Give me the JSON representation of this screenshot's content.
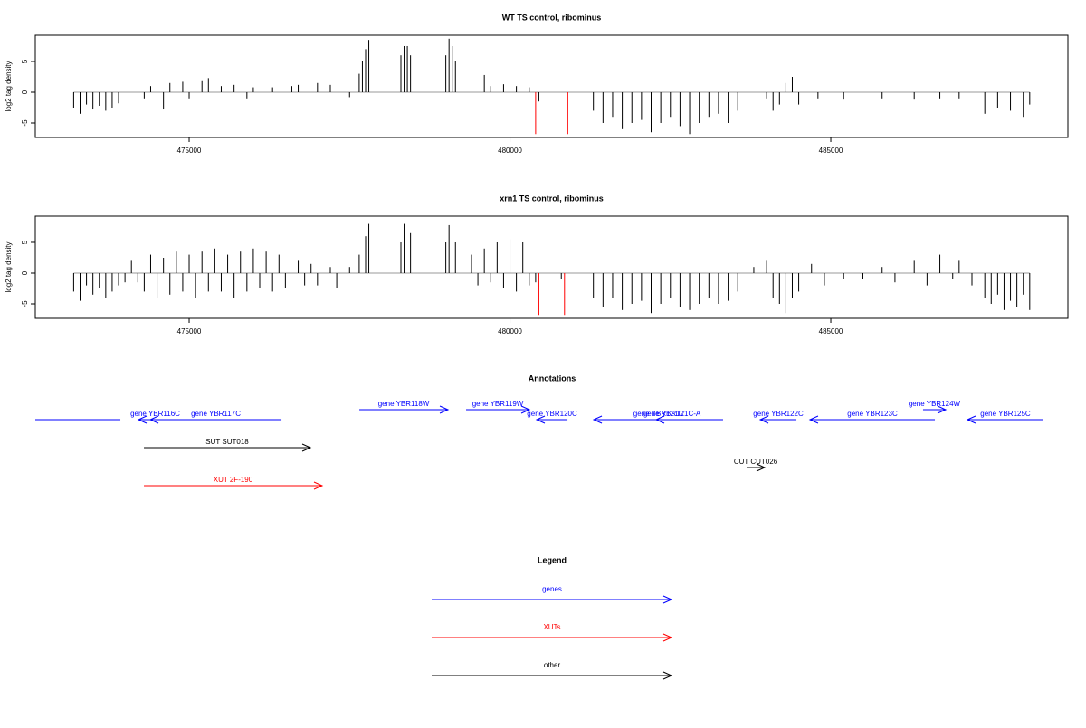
{
  "chart_data": [
    {
      "type": "bar",
      "title": "WT TS control, ribominus",
      "y_label": "log2 tag density",
      "xlim": [
        472602,
        488695
      ],
      "ylim": [
        -7.35,
        9.26
      ],
      "xticks": [
        475000,
        480000,
        485000
      ],
      "yticks": [
        -5,
        0,
        5
      ],
      "series": [
        {
          "color": "#000000",
          "x": [
            473200,
            473300,
            473400,
            473500,
            473600,
            473700,
            473800,
            473900,
            474300,
            474400,
            474600,
            474700,
            474900,
            475000,
            475200,
            475300,
            475500,
            475700,
            475900,
            476000,
            476300,
            476600,
            476700,
            477000,
            477200,
            477500,
            477650,
            477700,
            477750,
            477800,
            478300,
            478350,
            478400,
            478450,
            479000,
            479050,
            479100,
            479150,
            479600,
            479700,
            479900,
            480100,
            480300,
            480450,
            481300,
            481450,
            481600,
            481750,
            481900,
            482050,
            482200,
            482350,
            482500,
            482650,
            482800,
            482950,
            483100,
            483250,
            483400,
            483550,
            484000,
            484100,
            484200,
            484300,
            484400,
            484500,
            484800,
            485200,
            485800,
            486300,
            486700,
            487000,
            487400,
            487600,
            487800,
            488000,
            488100
          ],
          "values": [
            -2.5,
            -3.5,
            -2,
            -2.8,
            -2.2,
            -3,
            -2.5,
            -1.8,
            -1,
            1,
            -2.8,
            1.5,
            1.7,
            -1,
            1.8,
            2.3,
            1,
            1.2,
            -1,
            0.8,
            0.8,
            1,
            1.2,
            1.5,
            1.2,
            -0.8,
            3,
            5,
            7,
            8.5,
            6,
            7.5,
            7.5,
            6,
            6,
            8.7,
            7.5,
            5,
            2.8,
            1,
            1.3,
            1,
            0.8,
            -1.5,
            -3,
            -5,
            -4,
            -6,
            -5,
            -4.5,
            -6.5,
            -5,
            -4,
            -5.5,
            -6.8,
            -5,
            -4,
            -3.5,
            -5,
            -3,
            -1,
            -3,
            -2,
            1.5,
            2.5,
            -2,
            -1,
            -1.2,
            -1,
            -1.2,
            -1,
            -1,
            -3.5,
            -2.5,
            -3,
            -4,
            -2
          ]
        },
        {
          "color": "#ff0000",
          "x": [
            480400,
            480900
          ],
          "values": [
            -6.8,
            -6.8
          ]
        }
      ]
    },
    {
      "type": "bar",
      "title": "xrn1 TS control, ribominus",
      "y_label": "log2 tag density",
      "xlim": [
        472602,
        488695
      ],
      "ylim": [
        -7.35,
        9.26
      ],
      "xticks": [
        475000,
        480000,
        485000
      ],
      "yticks": [
        -5,
        0,
        5
      ],
      "series": [
        {
          "color": "#000000",
          "x": [
            473200,
            473300,
            473400,
            473500,
            473600,
            473700,
            473800,
            473900,
            474000,
            474100,
            474200,
            474300,
            474400,
            474500,
            474600,
            474700,
            474800,
            474900,
            475000,
            475100,
            475200,
            475300,
            475400,
            475500,
            475600,
            475700,
            475800,
            475900,
            476000,
            476100,
            476200,
            476300,
            476400,
            476500,
            476700,
            476800,
            476900,
            477000,
            477200,
            477300,
            477500,
            477650,
            477750,
            477800,
            478300,
            478350,
            478450,
            479000,
            479050,
            479150,
            479400,
            479500,
            479600,
            479700,
            479800,
            479900,
            480000,
            480100,
            480200,
            480300,
            480400,
            480800,
            481300,
            481450,
            481600,
            481750,
            481900,
            482050,
            482200,
            482350,
            482500,
            482650,
            482800,
            482950,
            483100,
            483250,
            483400,
            483550,
            483800,
            484000,
            484100,
            484200,
            484300,
            484400,
            484500,
            484700,
            484900,
            485200,
            485500,
            485800,
            486000,
            486300,
            486500,
            486700,
            486900,
            487000,
            487200,
            487400,
            487500,
            487600,
            487700,
            487800,
            487900,
            488000,
            488100
          ],
          "values": [
            -3,
            -4.5,
            -2,
            -3.5,
            -2.5,
            -4,
            -3,
            -2,
            -1.5,
            2,
            -1.5,
            -3,
            3,
            -4,
            2.5,
            -3.5,
            3.5,
            -3,
            3,
            -4,
            3.5,
            -3,
            4,
            -3,
            3,
            -4,
            3.5,
            -3,
            4,
            -2.5,
            3.5,
            -3,
            3,
            -2.5,
            2,
            -2,
            1.5,
            -2,
            1,
            -2.5,
            1,
            3,
            6,
            8,
            5,
            8,
            6.5,
            5,
            7.8,
            5,
            3,
            -2,
            4,
            -1.5,
            5,
            -2.5,
            5.5,
            -3,
            5,
            -2,
            -1.5,
            -1,
            -4,
            -5.5,
            -4,
            -6,
            -5,
            -4.5,
            -6.5,
            -5,
            -4,
            -5.5,
            -6,
            -5,
            -4,
            -5,
            -4.5,
            -3,
            1,
            2,
            -4,
            -5,
            -6.5,
            -4,
            -3,
            1.5,
            -2,
            -1,
            -1,
            1,
            -1.5,
            2,
            -2,
            3,
            -1,
            2,
            -2,
            -4,
            -5,
            -3.5,
            -6,
            -4.5,
            -5.5,
            -3.5,
            -6
          ]
        },
        {
          "color": "#ff0000",
          "x": [
            480450,
            480850
          ],
          "values": [
            -6.8,
            -6.8
          ]
        }
      ]
    }
  ],
  "annotations": {
    "title": "Annotations",
    "features": [
      {
        "start": 472602,
        "end": 473928,
        "strand": "-",
        "color": "#0000ff"
      },
      {
        "label": "gene YBR116C",
        "start": 474210,
        "end": 474732,
        "strand": "-",
        "color": "#0000ff"
      },
      {
        "label": "gene YBR117C",
        "start": 474394,
        "end": 476439,
        "strand": "-",
        "color": "#0000ff"
      },
      {
        "label": "gene YBR118W",
        "start": 477652,
        "end": 479034,
        "strand": "+",
        "color": "#0000ff"
      },
      {
        "label": "gene YBR119W",
        "start": 479316,
        "end": 480303,
        "strand": "+",
        "color": "#0000ff"
      },
      {
        "label": "gene YBR120C",
        "start": 480416,
        "end": 480896,
        "strand": "-",
        "color": "#0000ff"
      },
      {
        "label": "gene YBR121C",
        "start": 481305,
        "end": 483321,
        "strand": "-",
        "color": "#0000ff"
      },
      {
        "label": "gene YBR121C-A",
        "start": 482278,
        "end": 482772,
        "strand": "-",
        "color": "#0000ff"
      },
      {
        "label": "gene YBR122C",
        "start": 483900,
        "end": 484464,
        "strand": "-",
        "color": "#0000ff"
      },
      {
        "label": "gene YBR123C",
        "start": 484675,
        "end": 486622,
        "strand": "-",
        "color": "#0000ff"
      },
      {
        "label": "gene YBR124W",
        "start": 486438,
        "end": 486791,
        "strand": "+",
        "color": "#0000ff"
      },
      {
        "label": "gene YBR125C",
        "start": 487129,
        "end": 488314,
        "strand": "-",
        "color": "#0000ff"
      },
      {
        "label": "SUT SUT018",
        "start": 474295,
        "end": 476890,
        "strand": "+",
        "color": "#000000"
      },
      {
        "label": "CUT CUT026",
        "start": 483688,
        "end": 483970,
        "strand": "+",
        "color": "#000000"
      },
      {
        "label": "XUT 2F-190",
        "start": 474295,
        "end": 477073,
        "strand": "+",
        "color": "#ff0000"
      }
    ]
  },
  "legend": {
    "title": "Legend",
    "entries": [
      {
        "name": "genes",
        "color": "#0000ff"
      },
      {
        "name": "XUTs",
        "color": "#ff0000"
      },
      {
        "name": "other",
        "color": "#000000"
      }
    ]
  }
}
